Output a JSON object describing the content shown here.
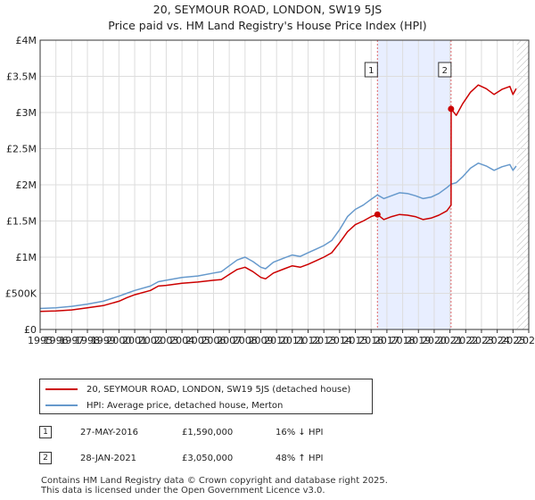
{
  "chart_data": {
    "type": "line",
    "title_line1": "20, SEYMOUR ROAD, LONDON, SW19 5JS",
    "title_line2": "Price paid vs. HM Land Registry's House Price Index (HPI)",
    "xlim": [
      1995,
      2026
    ],
    "ylim": [
      0,
      4000000
    ],
    "x_ticks": [
      "1995",
      "1996",
      "1997",
      "1998",
      "1999",
      "2000",
      "2001",
      "2002",
      "2003",
      "2004",
      "2005",
      "2006",
      "2007",
      "2008",
      "2009",
      "2010",
      "2011",
      "2012",
      "2013",
      "2014",
      "2015",
      "2016",
      "2017",
      "2018",
      "2019",
      "2020",
      "2021",
      "2022",
      "2023",
      "2024",
      "2025",
      "2026"
    ],
    "y_ticks": [
      {
        "value": 0,
        "label": "£0"
      },
      {
        "value": 500000,
        "label": "£500K"
      },
      {
        "value": 1000000,
        "label": "£1M"
      },
      {
        "value": 1500000,
        "label": "£1.5M"
      },
      {
        "value": 2000000,
        "label": "£2M"
      },
      {
        "value": 2500000,
        "label": "£2.5M"
      },
      {
        "value": 3000000,
        "label": "£3M"
      },
      {
        "value": 3500000,
        "label": "£3.5M"
      },
      {
        "value": 4000000,
        "label": "£4M"
      }
    ],
    "series": [
      {
        "name": "20, SEYMOUR ROAD, LONDON, SW19 5JS (detached house)",
        "color": "#cc0000",
        "points": [
          [
            1995.0,
            250000
          ],
          [
            1996.0,
            255000
          ],
          [
            1997.0,
            270000
          ],
          [
            1998.0,
            300000
          ],
          [
            1999.0,
            330000
          ],
          [
            2000.0,
            390000
          ],
          [
            2000.5,
            440000
          ],
          [
            2001.0,
            480000
          ],
          [
            2002.0,
            540000
          ],
          [
            2002.5,
            600000
          ],
          [
            2003.0,
            610000
          ],
          [
            2004.0,
            640000
          ],
          [
            2005.0,
            655000
          ],
          [
            2006.0,
            680000
          ],
          [
            2006.5,
            690000
          ],
          [
            2007.0,
            760000
          ],
          [
            2007.5,
            830000
          ],
          [
            2008.0,
            860000
          ],
          [
            2008.5,
            800000
          ],
          [
            2009.0,
            720000
          ],
          [
            2009.3,
            700000
          ],
          [
            2009.8,
            780000
          ],
          [
            2010.5,
            840000
          ],
          [
            2011.0,
            880000
          ],
          [
            2011.5,
            860000
          ],
          [
            2012.0,
            900000
          ],
          [
            2012.5,
            950000
          ],
          [
            2013.0,
            1000000
          ],
          [
            2013.5,
            1060000
          ],
          [
            2014.0,
            1200000
          ],
          [
            2014.5,
            1350000
          ],
          [
            2015.0,
            1450000
          ],
          [
            2015.5,
            1500000
          ],
          [
            2016.0,
            1560000
          ],
          [
            2016.4,
            1590000
          ],
          [
            2016.8,
            1520000
          ],
          [
            2017.3,
            1560000
          ],
          [
            2017.8,
            1590000
          ],
          [
            2018.3,
            1580000
          ],
          [
            2018.8,
            1560000
          ],
          [
            2019.3,
            1520000
          ],
          [
            2019.8,
            1540000
          ],
          [
            2020.3,
            1580000
          ],
          [
            2020.8,
            1640000
          ],
          [
            2021.07,
            1720000
          ],
          [
            2021.08,
            3050000
          ],
          [
            2021.4,
            2960000
          ],
          [
            2021.8,
            3120000
          ],
          [
            2022.3,
            3280000
          ],
          [
            2022.8,
            3380000
          ],
          [
            2023.3,
            3330000
          ],
          [
            2023.8,
            3250000
          ],
          [
            2024.3,
            3320000
          ],
          [
            2024.8,
            3360000
          ],
          [
            2025.0,
            3250000
          ],
          [
            2025.2,
            3330000
          ]
        ]
      },
      {
        "name": "HPI: Average price, detached house, Merton",
        "color": "#6699cc",
        "points": [
          [
            1995.0,
            290000
          ],
          [
            1996.0,
            300000
          ],
          [
            1997.0,
            320000
          ],
          [
            1998.0,
            350000
          ],
          [
            1999.0,
            390000
          ],
          [
            2000.0,
            460000
          ],
          [
            2000.5,
            500000
          ],
          [
            2001.0,
            540000
          ],
          [
            2002.0,
            600000
          ],
          [
            2002.5,
            660000
          ],
          [
            2003.0,
            680000
          ],
          [
            2004.0,
            720000
          ],
          [
            2005.0,
            740000
          ],
          [
            2006.0,
            780000
          ],
          [
            2006.5,
            800000
          ],
          [
            2007.0,
            880000
          ],
          [
            2007.5,
            960000
          ],
          [
            2008.0,
            1000000
          ],
          [
            2008.5,
            940000
          ],
          [
            2009.0,
            860000
          ],
          [
            2009.3,
            840000
          ],
          [
            2009.8,
            930000
          ],
          [
            2010.5,
            990000
          ],
          [
            2011.0,
            1030000
          ],
          [
            2011.5,
            1010000
          ],
          [
            2012.0,
            1060000
          ],
          [
            2012.5,
            1110000
          ],
          [
            2013.0,
            1160000
          ],
          [
            2013.5,
            1230000
          ],
          [
            2014.0,
            1380000
          ],
          [
            2014.5,
            1560000
          ],
          [
            2015.0,
            1660000
          ],
          [
            2015.5,
            1720000
          ],
          [
            2016.0,
            1800000
          ],
          [
            2016.4,
            1860000
          ],
          [
            2016.8,
            1810000
          ],
          [
            2017.3,
            1850000
          ],
          [
            2017.8,
            1890000
          ],
          [
            2018.3,
            1880000
          ],
          [
            2018.8,
            1850000
          ],
          [
            2019.3,
            1810000
          ],
          [
            2019.8,
            1830000
          ],
          [
            2020.3,
            1880000
          ],
          [
            2020.8,
            1960000
          ],
          [
            2021.07,
            2010000
          ],
          [
            2021.4,
            2030000
          ],
          [
            2021.8,
            2110000
          ],
          [
            2022.3,
            2230000
          ],
          [
            2022.8,
            2300000
          ],
          [
            2023.3,
            2260000
          ],
          [
            2023.8,
            2200000
          ],
          [
            2024.3,
            2250000
          ],
          [
            2024.8,
            2280000
          ],
          [
            2025.0,
            2200000
          ],
          [
            2025.2,
            2260000
          ]
        ]
      }
    ],
    "shaded_range": [
      2016.4,
      2021.07
    ],
    "future_hatch_from": 2025.25,
    "sales": [
      {
        "label": "1",
        "x": 2016.4,
        "value": 1590000,
        "date": "27-MAY-2016",
        "price": "£1,590,000",
        "hpi": "16% ↓ HPI"
      },
      {
        "label": "2",
        "x": 2021.07,
        "value": 3050000,
        "date": "28-JAN-2021",
        "price": "£3,050,000",
        "hpi": "48% ↑ HPI"
      }
    ],
    "legend_position": "below",
    "grid": true
  },
  "colors": {
    "property": "#cc0000",
    "hpi": "#6699cc",
    "shade": "#e8eeff",
    "grid": "#dddddd",
    "vline": "#e06666"
  },
  "footer": {
    "line1": "Contains HM Land Registry data © Crown copyright and database right 2025.",
    "line2": "This data is licensed under the Open Government Licence v3.0."
  }
}
